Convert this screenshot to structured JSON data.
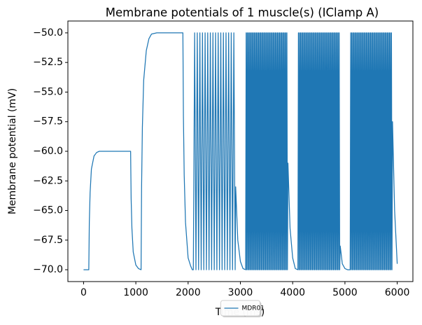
{
  "chart_data": {
    "type": "line",
    "title": "Membrane potentials of 1 muscle(s) (IClamp A)",
    "x_label": "Time (ms)",
    "y_label": "Membrane potential (mV)",
    "xlim": [
      -300,
      6300
    ],
    "ylim": [
      -71,
      -49
    ],
    "xticks": [
      0,
      1000,
      2000,
      3000,
      4000,
      5000,
      6000
    ],
    "yticks": [
      {
        "value": -70,
        "label": "−70.0"
      },
      {
        "value": -67.5,
        "label": "−67.5"
      },
      {
        "value": -65,
        "label": "−65.0"
      },
      {
        "value": -62.5,
        "label": "−62.5"
      },
      {
        "value": -60,
        "label": "−60.0"
      },
      {
        "value": -57.5,
        "label": "−57.5"
      },
      {
        "value": -55,
        "label": "−55.0"
      },
      {
        "value": -52.5,
        "label": "−52.5"
      },
      {
        "value": -50,
        "label": "−50.0"
      }
    ],
    "legend": "lower center",
    "x": [
      0,
      100,
      110,
      125,
      150,
      200,
      250,
      300,
      900,
      910,
      925,
      950,
      1000,
      1050,
      1100,
      1110,
      1125,
      1150,
      1200,
      1250,
      1300,
      1400,
      1900,
      1910,
      1925,
      1950,
      2000,
      2050,
      2080,
      2100,
      2125,
      2150,
      2175,
      2200,
      2225,
      2250,
      2275,
      2300,
      2325,
      2350,
      2375,
      2400,
      2425,
      2450,
      2475,
      2500,
      2525,
      2550,
      2575,
      2600,
      2625,
      2650,
      2675,
      2700,
      2725,
      2750,
      2775,
      2800,
      2825,
      2850,
      2875,
      2900,
      2910,
      2950,
      3000,
      3050,
      3100,
      3110,
      3120,
      3130,
      3140,
      3150,
      3160,
      3170,
      3180,
      3190,
      3200,
      3210,
      3220,
      3230,
      3240,
      3250,
      3260,
      3270,
      3280,
      3290,
      3300,
      3310,
      3320,
      3330,
      3340,
      3350,
      3360,
      3370,
      3380,
      3390,
      3400,
      3410,
      3420,
      3430,
      3440,
      3450,
      3460,
      3470,
      3480,
      3490,
      3500,
      3510,
      3520,
      3530,
      3540,
      3550,
      3560,
      3570,
      3580,
      3590,
      3600,
      3610,
      3620,
      3630,
      3640,
      3650,
      3660,
      3670,
      3680,
      3690,
      3700,
      3710,
      3720,
      3730,
      3740,
      3750,
      3760,
      3770,
      3780,
      3790,
      3800,
      3810,
      3820,
      3830,
      3840,
      3850,
      3860,
      3870,
      3880,
      3890,
      3900,
      3910,
      3950,
      4000,
      4050,
      4100,
      4110,
      4120,
      4130,
      4140,
      4150,
      4160,
      4170,
      4180,
      4190,
      4200,
      4210,
      4220,
      4230,
      4240,
      4250,
      4260,
      4270,
      4280,
      4290,
      4300,
      4310,
      4320,
      4330,
      4340,
      4350,
      4360,
      4370,
      4380,
      4390,
      4400,
      4410,
      4420,
      4430,
      4440,
      4450,
      4460,
      4470,
      4480,
      4490,
      4500,
      4510,
      4520,
      4530,
      4540,
      4550,
      4560,
      4570,
      4580,
      4590,
      4600,
      4610,
      4620,
      4630,
      4640,
      4650,
      4660,
      4670,
      4680,
      4690,
      4700,
      4710,
      4720,
      4730,
      4740,
      4750,
      4760,
      4770,
      4780,
      4790,
      4800,
      4810,
      4820,
      4830,
      4840,
      4850,
      4860,
      4870,
      4880,
      4890,
      4900,
      4910,
      4950,
      5000,
      5050,
      5100,
      5110,
      5120,
      5130,
      5140,
      5150,
      5160,
      5170,
      5180,
      5190,
      5200,
      5210,
      5220,
      5230,
      5240,
      5250,
      5260,
      5270,
      5280,
      5290,
      5300,
      5310,
      5320,
      5330,
      5340,
      5350,
      5360,
      5370,
      5380,
      5390,
      5400,
      5410,
      5420,
      5430,
      5440,
      5450,
      5460,
      5470,
      5480,
      5490,
      5500,
      5510,
      5520,
      5530,
      5540,
      5550,
      5560,
      5570,
      5580,
      5590,
      5600,
      5610,
      5620,
      5630,
      5640,
      5650,
      5660,
      5670,
      5680,
      5690,
      5700,
      5710,
      5720,
      5730,
      5740,
      5750,
      5760,
      5770,
      5780,
      5790,
      5800,
      5810,
      5820,
      5830,
      5840,
      5850,
      5860,
      5870,
      5880,
      5890,
      5900,
      5910,
      5950,
      6000
    ],
    "series": [
      {
        "name": "MDR01",
        "color": "#1f77b4",
        "values": [
          -70,
          -70,
          -66,
          -63.5,
          -61.5,
          -60.4,
          -60.1,
          -60,
          -60,
          -64,
          -66.5,
          -68.5,
          -69.6,
          -69.9,
          -70,
          -63,
          -58,
          -54,
          -51.5,
          -50.5,
          -50.1,
          -50,
          -50,
          -57,
          -62,
          -66,
          -69,
          -69.7,
          -70,
          -70,
          -50,
          -70,
          -50,
          -70,
          -50,
          -70,
          -50,
          -70,
          -50,
          -70,
          -50,
          -70,
          -50,
          -70,
          -50,
          -70,
          -50,
          -70,
          -50,
          -70,
          -50,
          -70,
          -50,
          -70,
          -50,
          -70,
          -50,
          -70,
          -50,
          -70,
          -50,
          -70,
          -63,
          -67.5,
          -69.3,
          -69.9,
          -70,
          -50,
          -70,
          -50,
          -70,
          -50,
          -70,
          -50,
          -70,
          -50,
          -70,
          -50,
          -70,
          -50,
          -70,
          -50,
          -70,
          -50,
          -70,
          -50,
          -70,
          -50,
          -70,
          -50,
          -70,
          -50,
          -70,
          -50,
          -70,
          -50,
          -70,
          -50,
          -70,
          -50,
          -70,
          -50,
          -70,
          -50,
          -70,
          -50,
          -70,
          -50,
          -70,
          -50,
          -70,
          -50,
          -70,
          -50,
          -70,
          -50,
          -70,
          -50,
          -70,
          -50,
          -70,
          -50,
          -70,
          -50,
          -70,
          -50,
          -70,
          -50,
          -70,
          -50,
          -70,
          -50,
          -70,
          -50,
          -70,
          -50,
          -70,
          -50,
          -70,
          -50,
          -70,
          -50,
          -70,
          -50,
          -70,
          -50,
          -70,
          -61,
          -66.5,
          -69,
          -69.9,
          -70,
          -50,
          -70,
          -50,
          -70,
          -50,
          -70,
          -50,
          -70,
          -50,
          -70,
          -50,
          -70,
          -50,
          -70,
          -50,
          -70,
          -50,
          -70,
          -50,
          -70,
          -50,
          -70,
          -50,
          -70,
          -50,
          -70,
          -50,
          -70,
          -50,
          -70,
          -50,
          -70,
          -50,
          -70,
          -50,
          -70,
          -50,
          -70,
          -50,
          -70,
          -50,
          -70,
          -50,
          -70,
          -50,
          -70,
          -50,
          -70,
          -50,
          -70,
          -50,
          -70,
          -50,
          -70,
          -50,
          -70,
          -50,
          -70,
          -50,
          -70,
          -50,
          -70,
          -50,
          -70,
          -50,
          -70,
          -50,
          -70,
          -50,
          -70,
          -50,
          -70,
          -50,
          -70,
          -50,
          -70,
          -50,
          -70,
          -50,
          -70,
          -68,
          -69.5,
          -69.9,
          -70,
          -70,
          -50,
          -70,
          -50,
          -70,
          -50,
          -70,
          -50,
          -70,
          -50,
          -70,
          -50,
          -70,
          -50,
          -70,
          -50,
          -70,
          -50,
          -70,
          -50,
          -70,
          -50,
          -70,
          -50,
          -70,
          -50,
          -70,
          -50,
          -70,
          -50,
          -70,
          -50,
          -70,
          -50,
          -70,
          -50,
          -70,
          -50,
          -70,
          -50,
          -70,
          -50,
          -70,
          -50,
          -70,
          -50,
          -70,
          -50,
          -70,
          -50,
          -70,
          -50,
          -70,
          -50,
          -70,
          -50,
          -70,
          -50,
          -70,
          -50,
          -70,
          -50,
          -70,
          -50,
          -70,
          -50,
          -70,
          -50,
          -70,
          -50,
          -70,
          -50,
          -70,
          -50,
          -70,
          -50,
          -70,
          -50,
          -70,
          -50,
          -70,
          -57.5,
          -65,
          -69.5
        ]
      }
    ]
  }
}
